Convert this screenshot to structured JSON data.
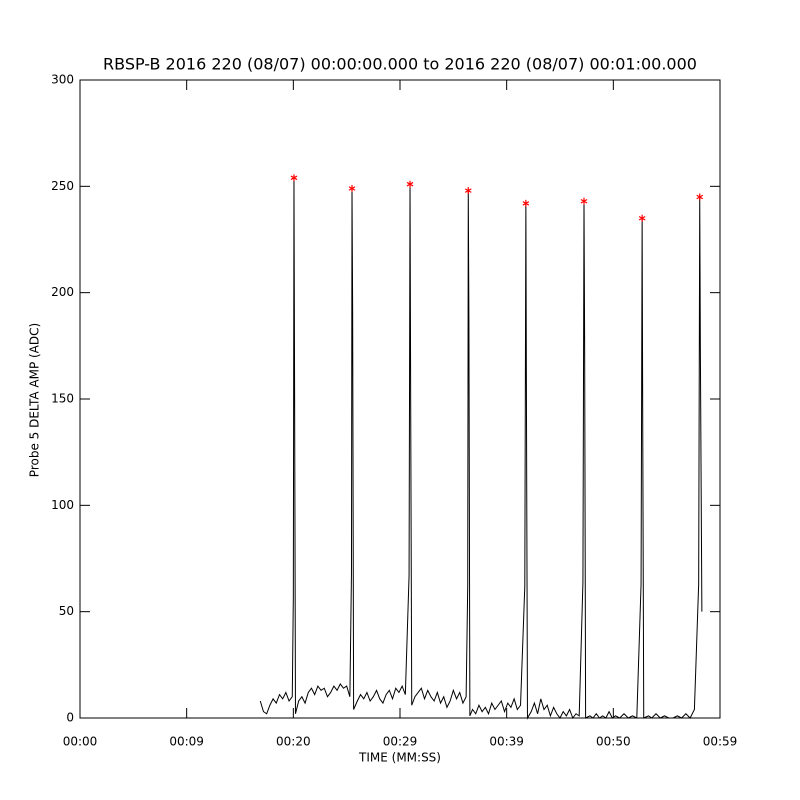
{
  "chart_data": {
    "type": "line",
    "title": "RBSP-B 2016 220 (08/07) 00:00:00.000 to 2016 220 (08/07) 00:01:00.000",
    "xlabel": "TIME (MM:SS)",
    "ylabel": "Probe 5 DELTA AMP (ADC)",
    "xlim": [
      0,
      60
    ],
    "ylim": [
      0,
      300
    ],
    "xticks": [
      {
        "value": 0,
        "label": "00:00"
      },
      {
        "value": 10,
        "label": "00:09"
      },
      {
        "value": 20,
        "label": "00:20"
      },
      {
        "value": 30,
        "label": "00:29"
      },
      {
        "value": 40,
        "label": "00:39"
      },
      {
        "value": 50,
        "label": "00:50"
      },
      {
        "value": 60,
        "label": "00:59"
      }
    ],
    "yticks": [
      0,
      50,
      100,
      150,
      200,
      250,
      300
    ],
    "series": [
      {
        "color": "#000000",
        "x": [
          16.9,
          17.2,
          17.5,
          17.8,
          18.1,
          18.4,
          18.7,
          19.0,
          19.3,
          19.6,
          19.9,
          20.0,
          20.06,
          20.12,
          20.2,
          20.5,
          20.8,
          21.1,
          21.4,
          21.7,
          22.0,
          22.3,
          22.6,
          22.9,
          23.2,
          23.5,
          23.8,
          24.1,
          24.4,
          24.7,
          25.0,
          25.3,
          25.45,
          25.5,
          25.56,
          25.65,
          26.0,
          26.3,
          26.6,
          26.9,
          27.2,
          27.5,
          27.8,
          28.1,
          28.4,
          28.7,
          29.0,
          29.3,
          29.6,
          29.9,
          30.2,
          30.5,
          30.85,
          30.94,
          31.0,
          31.1,
          31.4,
          31.7,
          32.0,
          32.3,
          32.6,
          32.9,
          33.2,
          33.5,
          33.8,
          34.1,
          34.4,
          34.7,
          35.0,
          35.3,
          35.6,
          35.9,
          36.2,
          36.35,
          36.4,
          36.46,
          36.55,
          36.8,
          37.1,
          37.4,
          37.7,
          38.0,
          38.3,
          38.6,
          38.9,
          39.2,
          39.5,
          39.8,
          40.1,
          40.4,
          40.7,
          41.0,
          41.3,
          41.7,
          41.8,
          41.86,
          41.95,
          42.3,
          42.6,
          42.9,
          43.2,
          43.5,
          43.8,
          44.1,
          44.4,
          44.7,
          45.0,
          45.3,
          45.6,
          45.9,
          46.2,
          46.5,
          46.8,
          47.15,
          47.25,
          47.31,
          47.4,
          47.8,
          48.1,
          48.4,
          48.7,
          49.0,
          49.3,
          49.6,
          49.9,
          50.2,
          50.6,
          51.0,
          51.4,
          51.8,
          52.2,
          52.6,
          52.7,
          52.76,
          52.85,
          53.3,
          53.6,
          54.0,
          54.4,
          54.8,
          55.2,
          55.6,
          56.0,
          56.4,
          56.8,
          57.2,
          57.6,
          58.0,
          58.1,
          58.16,
          58.3
        ],
        "values": [
          8,
          3,
          2,
          6,
          9,
          7,
          11,
          9,
          12,
          8,
          10,
          57,
          254,
          152,
          2,
          8,
          10,
          7,
          12,
          14,
          11,
          15,
          13,
          14,
          10,
          12,
          15,
          13,
          16,
          14,
          15,
          10,
          68,
          249,
          192,
          4,
          8,
          11,
          9,
          12,
          8,
          10,
          13,
          9,
          7,
          11,
          13,
          9,
          14,
          12,
          15,
          11,
          67,
          251,
          150,
          6,
          10,
          12,
          14,
          9,
          13,
          10,
          8,
          12,
          7,
          10,
          5,
          8,
          13,
          9,
          12,
          7,
          10,
          62,
          248,
          187,
          1,
          4,
          2,
          6,
          3,
          5,
          2,
          7,
          4,
          6,
          8,
          3,
          7,
          5,
          9,
          4,
          6,
          62,
          242,
          139,
          0,
          3,
          7,
          2,
          9,
          4,
          6,
          1,
          5,
          2,
          0,
          3,
          1,
          4,
          0,
          2,
          1,
          64,
          243,
          176,
          0,
          1,
          0,
          2,
          0,
          1,
          0,
          3,
          0,
          1,
          0,
          2,
          0,
          1,
          0,
          63,
          235,
          132,
          0,
          1,
          0,
          2,
          0,
          1,
          0,
          0,
          1,
          0,
          2,
          0,
          4,
          63,
          245,
          173,
          50
        ]
      },
      {
        "color": "#ff0000",
        "marker": "asterisk",
        "x": [
          20.06,
          25.5,
          30.94,
          36.4,
          41.8,
          47.25,
          52.7,
          58.1
        ],
        "values": [
          254,
          249,
          251,
          248,
          242,
          243,
          235,
          245
        ]
      }
    ]
  }
}
